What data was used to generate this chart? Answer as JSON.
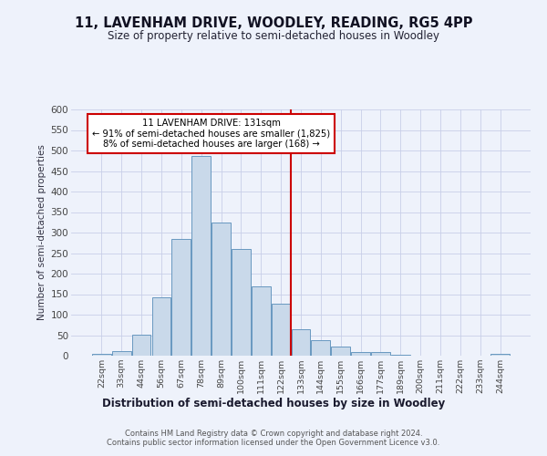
{
  "title": "11, LAVENHAM DRIVE, WOODLEY, READING, RG5 4PP",
  "subtitle": "Size of property relative to semi-detached houses in Woodley",
  "xlabel": "Distribution of semi-detached houses by size in Woodley",
  "ylabel": "Number of semi-detached properties",
  "categories": [
    "22sqm",
    "33sqm",
    "44sqm",
    "56sqm",
    "67sqm",
    "78sqm",
    "89sqm",
    "100sqm",
    "111sqm",
    "122sqm",
    "133sqm",
    "144sqm",
    "155sqm",
    "166sqm",
    "177sqm",
    "189sqm",
    "200sqm",
    "211sqm",
    "222sqm",
    "233sqm",
    "244sqm"
  ],
  "values": [
    5,
    12,
    52,
    143,
    285,
    487,
    325,
    260,
    168,
    127,
    64,
    37,
    23,
    9,
    10,
    3,
    0,
    0,
    0,
    0,
    4
  ],
  "bar_color": "#c9d9ea",
  "bar_edge_color": "#6898c0",
  "background_color": "#eef2fb",
  "grid_color": "#c8cfe8",
  "property_line_index": 10,
  "annotation_line1": "11 LAVENHAM DRIVE: 131sqm",
  "annotation_line2": "← 91% of semi-detached houses are smaller (1,825)",
  "annotation_line3": "8% of semi-detached houses are larger (168) →",
  "annotation_box_color": "#ffffff",
  "annotation_box_edge": "#cc0000",
  "vline_color": "#cc0000",
  "ylim": [
    0,
    600
  ],
  "yticks": [
    0,
    50,
    100,
    150,
    200,
    250,
    300,
    350,
    400,
    450,
    500,
    550,
    600
  ],
  "footer1": "Contains HM Land Registry data © Crown copyright and database right 2024.",
  "footer2": "Contains public sector information licensed under the Open Government Licence v3.0."
}
